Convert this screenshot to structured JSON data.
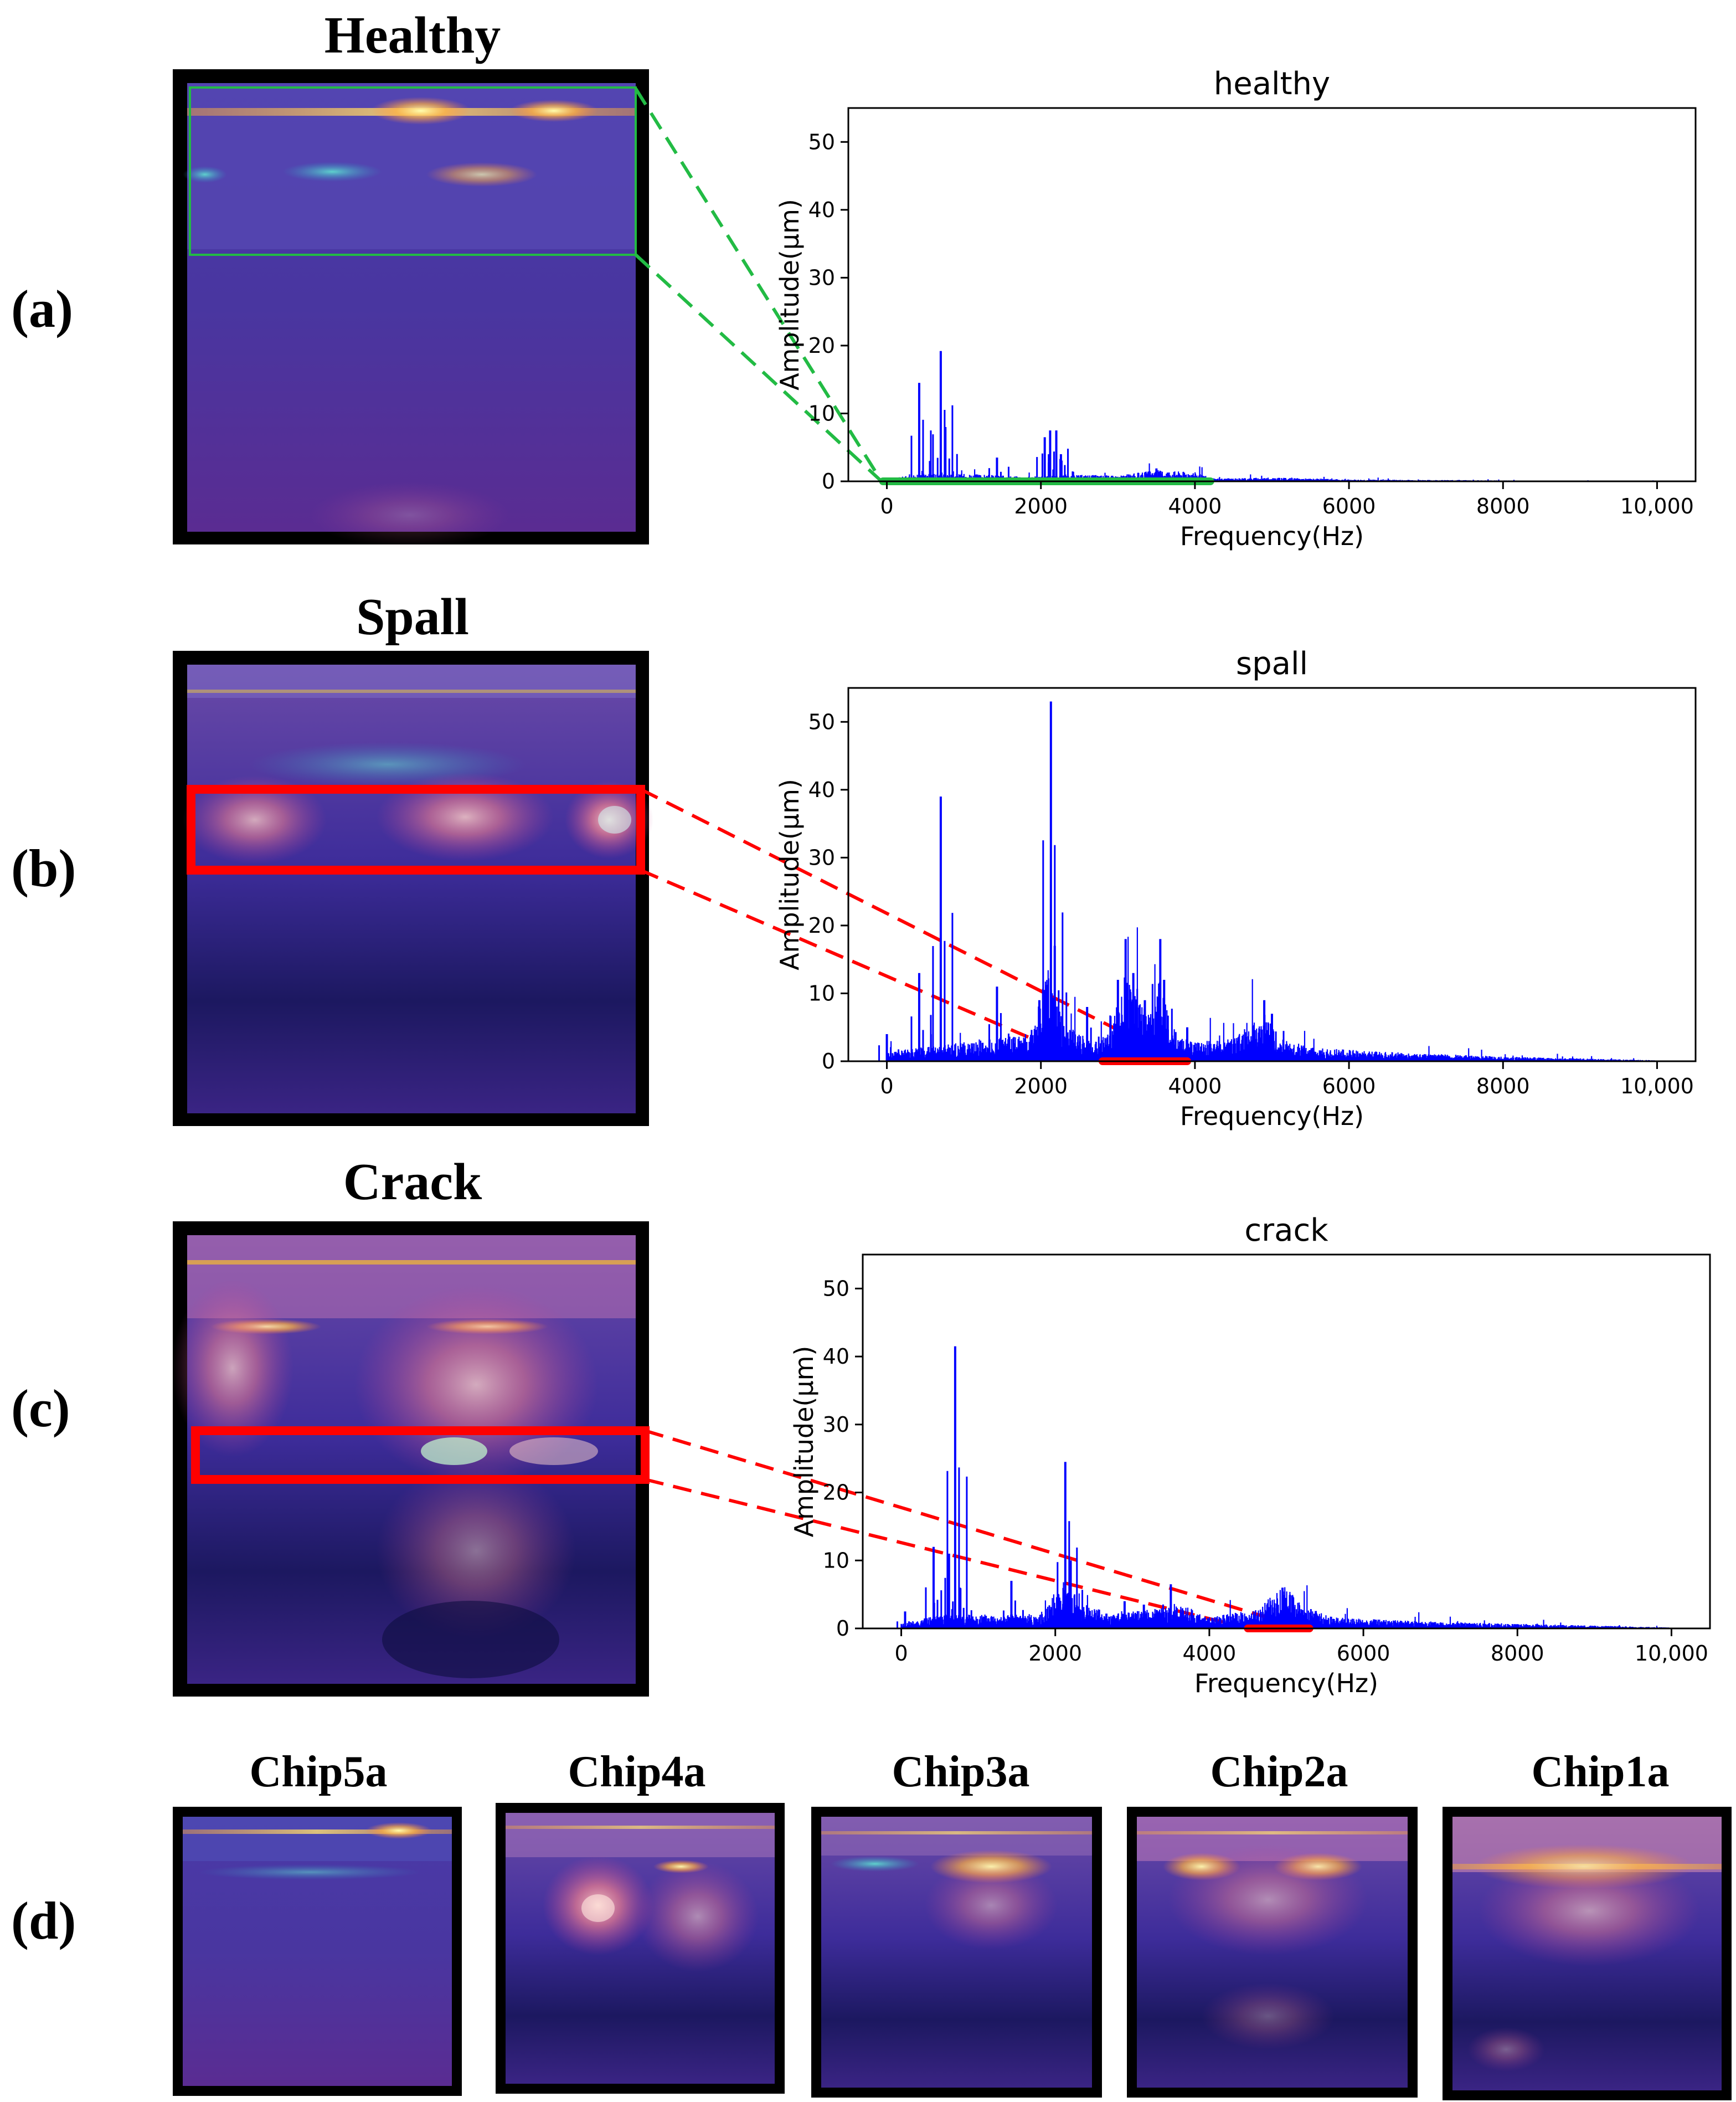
{
  "panel_labels": [
    "(a)",
    "(b)",
    "(c)",
    "(d)"
  ],
  "colors": {
    "spectrum": "#0000ff",
    "healthy_band": "#22bb44",
    "fault_band": "#ff0000",
    "axis": "#000000"
  },
  "images": {
    "healthy": {
      "title": "Healthy"
    },
    "spall": {
      "title": "Spall"
    },
    "crack": {
      "title": "Crack"
    },
    "chips": [
      {
        "title": "Chip5a"
      },
      {
        "title": "Chip4a"
      },
      {
        "title": "Chip3a"
      },
      {
        "title": "Chip2a"
      },
      {
        "title": "Chip1a"
      }
    ]
  },
  "chart_data": [
    {
      "type": "line",
      "title": "healthy",
      "xlabel": "Frequency(Hz)",
      "ylabel": "Amplitude(μm)",
      "xlim": [
        -500,
        10500
      ],
      "ylim": [
        0,
        55
      ],
      "xticks": [
        0,
        2000,
        4000,
        6000,
        8000,
        10000
      ],
      "xtick_labels": [
        "0",
        "2000",
        "4000",
        "6000",
        "8000",
        "10,000"
      ],
      "yticks": [
        0,
        10,
        20,
        30,
        40,
        50
      ],
      "highlight_band": {
        "range": [
          -50,
          4200
        ],
        "color": "#22bb44"
      },
      "baseline": [
        [
          0,
          0.3
        ],
        [
          500,
          0.8
        ],
        [
          1000,
          0.8
        ],
        [
          1800,
          0.5
        ],
        [
          2600,
          0.7
        ],
        [
          3000,
          0.6
        ],
        [
          3500,
          1.2
        ],
        [
          4000,
          1.0
        ],
        [
          4200,
          0.3
        ],
        [
          5000,
          0.4
        ],
        [
          6000,
          0.2
        ],
        [
          7000,
          0.15
        ],
        [
          8000,
          0.1
        ],
        [
          9000,
          0.05
        ],
        [
          10000,
          0.05
        ]
      ],
      "peaks": [
        [
          420,
          14.5
        ],
        [
          560,
          3
        ],
        [
          700,
          19.2
        ],
        [
          760,
          8
        ],
        [
          1430,
          3.5
        ],
        [
          2050,
          6.5
        ],
        [
          2120,
          7.5
        ],
        [
          2200,
          7.5
        ],
        [
          2260,
          4
        ],
        [
          3500,
          1.9
        ]
      ]
    },
    {
      "type": "line",
      "title": "spall",
      "xlabel": "Frequency(Hz)",
      "ylabel": "Amplitude(μm)",
      "xlim": [
        -500,
        10500
      ],
      "ylim": [
        0,
        55
      ],
      "xticks": [
        0,
        2000,
        4000,
        6000,
        8000,
        10000
      ],
      "xtick_labels": [
        "0",
        "2000",
        "4000",
        "6000",
        "8000",
        "10,000"
      ],
      "yticks": [
        0,
        10,
        20,
        30,
        40,
        50
      ],
      "highlight_band": {
        "range": [
          2800,
          3900
        ],
        "color": "#ff0000"
      },
      "baseline": [
        [
          0,
          1
        ],
        [
          500,
          1.5
        ],
        [
          1000,
          2
        ],
        [
          1500,
          2.5
        ],
        [
          1900,
          3
        ],
        [
          2100,
          12
        ],
        [
          2150,
          8
        ],
        [
          2300,
          4
        ],
        [
          2700,
          2
        ],
        [
          2900,
          3
        ],
        [
          3050,
          8
        ],
        [
          3150,
          9
        ],
        [
          3300,
          6
        ],
        [
          3450,
          5
        ],
        [
          3550,
          10
        ],
        [
          3700,
          3
        ],
        [
          4000,
          2
        ],
        [
          4500,
          2.5
        ],
        [
          4900,
          5
        ],
        [
          5100,
          2.5
        ],
        [
          5500,
          1.5
        ],
        [
          6000,
          1.2
        ],
        [
          7000,
          0.8
        ],
        [
          8000,
          0.5
        ],
        [
          9000,
          0.3
        ],
        [
          10000,
          0.1
        ]
      ],
      "peaks": [
        [
          0,
          4
        ],
        [
          420,
          13
        ],
        [
          700,
          39
        ],
        [
          1430,
          11
        ],
        [
          1980,
          9
        ],
        [
          2130,
          53
        ],
        [
          2180,
          17
        ],
        [
          2600,
          8
        ],
        [
          3000,
          12
        ],
        [
          3100,
          18
        ],
        [
          3200,
          13
        ],
        [
          3350,
          9
        ],
        [
          3550,
          18
        ],
        [
          3600,
          12
        ],
        [
          3900,
          5
        ],
        [
          4900,
          9
        ],
        [
          5000,
          7
        ]
      ]
    },
    {
      "type": "line",
      "title": "crack",
      "xlabel": "Frequency(Hz)",
      "ylabel": "Amplitude(μm)",
      "xlim": [
        -500,
        10500
      ],
      "ylim": [
        0,
        55
      ],
      "xticks": [
        0,
        2000,
        4000,
        6000,
        8000,
        10000
      ],
      "xtick_labels": [
        "0",
        "2000",
        "4000",
        "6000",
        "8000",
        "10,000"
      ],
      "yticks": [
        0,
        10,
        20,
        30,
        40,
        50
      ],
      "highlight_band": {
        "range": [
          4500,
          5300
        ],
        "color": "#ff0000"
      },
      "baseline": [
        [
          0,
          0.5
        ],
        [
          500,
          1.5
        ],
        [
          1000,
          1.5
        ],
        [
          1800,
          1.5
        ],
        [
          2100,
          5
        ],
        [
          2300,
          3
        ],
        [
          2700,
          1.5
        ],
        [
          3200,
          2
        ],
        [
          3600,
          2.5
        ],
        [
          4000,
          1.2
        ],
        [
          4600,
          2
        ],
        [
          4900,
          4
        ],
        [
          5000,
          5
        ],
        [
          5200,
          2.5
        ],
        [
          5600,
          1.2
        ],
        [
          6000,
          1
        ],
        [
          7000,
          0.7
        ],
        [
          8000,
          0.5
        ],
        [
          9000,
          0.3
        ],
        [
          10000,
          0.1
        ]
      ],
      "peaks": [
        [
          50,
          2.5
        ],
        [
          420,
          12
        ],
        [
          620,
          11
        ],
        [
          700,
          41.5
        ],
        [
          760,
          6
        ],
        [
          1430,
          7
        ],
        [
          2130,
          24.5
        ],
        [
          2200,
          10
        ],
        [
          2900,
          4
        ],
        [
          3150,
          3.5
        ],
        [
          3500,
          6.5
        ],
        [
          4950,
          6
        ]
      ]
    }
  ]
}
